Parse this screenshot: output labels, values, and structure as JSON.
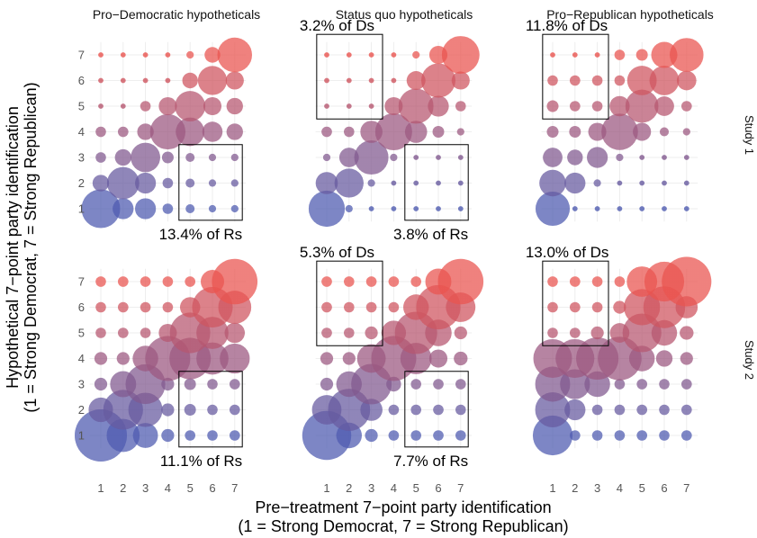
{
  "chart_data": {
    "type": "scatter",
    "subtype": "bubble-grid small multiples",
    "xlabel_line1": "Pre−treatment 7−point party identification",
    "xlabel_line2": "(1 = Strong Democrat, 7 = Strong Republican)",
    "ylabel_line1": "Hypothetical 7−point party identification",
    "ylabel_line2": "(1 = Strong Democrat, 7 = Strong Republican)",
    "columns": [
      "Pro−Democratic hypotheticals",
      "Status quo hypotheticals",
      "Pro−Republican hypotheticals"
    ],
    "rows": [
      "Study 1",
      "Study 2"
    ],
    "x_ticks": [
      "1",
      "2",
      "3",
      "4",
      "5",
      "6",
      "7"
    ],
    "y_ticks": [
      "1",
      "2",
      "3",
      "4",
      "5",
      "6",
      "7"
    ],
    "xlim": [
      0.5,
      7.5
    ],
    "ylim": [
      0.5,
      7.5
    ],
    "color_scale": {
      "low": "#3b4aa8",
      "high": "#e8433d",
      "by": "hypothetical party id"
    },
    "grid": true,
    "size_note": "bubble size is relative share of respondents (0-10 scale, estimated)",
    "panels": [
      {
        "row": "Study 1",
        "col": "Pro−Democratic hypotheticals",
        "annotations": [
          {
            "text": "13.4% of Rs",
            "box": "R-to-D"
          }
        ],
        "sizes": [
          [
            5.5,
            1.6,
            1.6,
            0.4,
            0.3,
            0.2,
            0.2
          ],
          [
            1.0,
            3.8,
            1.6,
            0.4,
            0.3,
            0.2,
            0.2
          ],
          [
            0.4,
            1.0,
            3.2,
            0.5,
            0.3,
            0.2,
            0.2
          ],
          [
            0.4,
            0.4,
            1.0,
            4.6,
            3.0,
            1.5,
            1.0
          ],
          [
            0.1,
            0.1,
            0.4,
            1.2,
            3.4,
            1.2,
            1.0
          ],
          [
            0.1,
            0.1,
            0.1,
            0.1,
            0.9,
            3.1,
            1.2
          ],
          [
            0.1,
            0.1,
            0.1,
            0.1,
            0.2,
            0.9,
            4.4
          ]
        ]
      },
      {
        "row": "Study 1",
        "col": "Status quo hypotheticals",
        "annotations": [
          {
            "text": "3.2% of Ds",
            "box": "D-to-R"
          },
          {
            "text": "3.8% of Rs",
            "box": "R-to-D"
          }
        ],
        "sizes": [
          [
            4.8,
            0.2,
            0.1,
            0.1,
            0.1,
            0.1,
            0.1
          ],
          [
            1.8,
            3.1,
            0.2,
            0.1,
            0.1,
            0.1,
            0.1
          ],
          [
            0.2,
            1.4,
            4.3,
            0.2,
            0.1,
            0.1,
            0.1
          ],
          [
            0.4,
            0.4,
            1.8,
            5.0,
            1.8,
            0.5,
            0.2
          ],
          [
            0.1,
            0.1,
            0.1,
            1.2,
            4.5,
            1.6,
            0.4
          ],
          [
            0.1,
            0.1,
            0.1,
            0.1,
            1.3,
            4.3,
            1.2
          ],
          [
            0.1,
            0.1,
            0.1,
            0.1,
            0.2,
            1.2,
            5.2
          ]
        ]
      },
      {
        "row": "Study 1",
        "col": "Pro−Republican hypotheticals",
        "annotations": [
          {
            "text": "11.8% of Ds",
            "box": "D-to-R"
          }
        ],
        "sizes": [
          [
            4.3,
            0.1,
            0.1,
            0.1,
            0.1,
            0.1,
            0.1
          ],
          [
            2.6,
            1.6,
            0.2,
            0.1,
            0.1,
            0.1,
            0.1
          ],
          [
            1.4,
            0.9,
            1.6,
            0.2,
            0.1,
            0.1,
            0.1
          ],
          [
            0.5,
            0.5,
            1.2,
            4.9,
            1.2,
            0.3,
            0.2
          ],
          [
            0.5,
            0.4,
            0.4,
            1.5,
            4.0,
            1.4,
            0.4
          ],
          [
            0.4,
            0.4,
            0.4,
            0.4,
            3.2,
            3.2,
            1.4
          ],
          [
            0.1,
            0.1,
            0.1,
            0.4,
            0.5,
            2.5,
            4.2
          ]
        ]
      },
      {
        "row": "Study 2",
        "col": "Pro−Democratic hypotheticals",
        "annotations": [
          {
            "text": "11.1% of Rs",
            "box": "R-to-D"
          }
        ],
        "sizes": [
          [
            10.0,
            4.0,
            2.3,
            0.6,
            0.4,
            0.4,
            0.4
          ],
          [
            2.2,
            5.8,
            4.3,
            0.6,
            0.5,
            0.4,
            0.4
          ],
          [
            0.6,
            2.5,
            5.8,
            0.6,
            0.5,
            0.4,
            0.4
          ],
          [
            0.6,
            0.6,
            2.4,
            7.4,
            6.3,
            3.8,
            3.3
          ],
          [
            0.4,
            0.4,
            0.4,
            1.2,
            6.0,
            3.8,
            1.5
          ],
          [
            0.4,
            0.4,
            0.4,
            0.4,
            1.5,
            6.0,
            4.0
          ],
          [
            0.4,
            0.4,
            0.4,
            0.4,
            0.4,
            2.0,
            7.6
          ]
        ]
      },
      {
        "row": "Study 2",
        "col": "Status quo hypotheticals",
        "annotations": [
          {
            "text": "5.3% of Ds",
            "box": "D-to-R"
          },
          {
            "text": "7.7% of Rs",
            "box": "R-to-D"
          }
        ],
        "sizes": [
          [
            8.8,
            2.4,
            0.6,
            0.4,
            0.4,
            0.4,
            0.4
          ],
          [
            3.2,
            6.5,
            1.8,
            0.4,
            0.4,
            0.4,
            0.4
          ],
          [
            0.6,
            2.4,
            6.0,
            0.8,
            0.4,
            0.4,
            0.4
          ],
          [
            0.6,
            0.6,
            3.0,
            7.4,
            3.6,
            1.2,
            0.7
          ],
          [
            0.4,
            0.4,
            0.6,
            2.2,
            6.6,
            2.6,
            0.6
          ],
          [
            0.4,
            0.4,
            0.4,
            0.4,
            2.4,
            7.2,
            3.2
          ],
          [
            0.4,
            0.4,
            0.4,
            0.4,
            0.4,
            2.5,
            7.6
          ]
        ]
      },
      {
        "row": "Study 2",
        "col": "Pro−Republican hypotheticals",
        "annotations": [
          {
            "text": "13.0% of Ds",
            "box": "D-to-R"
          }
        ],
        "sizes": [
          [
            5.8,
            0.4,
            0.4,
            0.4,
            0.4,
            0.4,
            0.4
          ],
          [
            4.5,
            1.6,
            0.4,
            0.4,
            0.4,
            0.4,
            0.4
          ],
          [
            4.5,
            3.3,
            2.4,
            0.4,
            0.4,
            0.4,
            0.4
          ],
          [
            5.5,
            5.5,
            6.6,
            7.0,
            2.4,
            1.0,
            0.6
          ],
          [
            0.4,
            0.4,
            0.6,
            1.4,
            5.5,
            2.4,
            0.7
          ],
          [
            0.4,
            0.4,
            0.4,
            0.6,
            4.8,
            6.4,
            1.8
          ],
          [
            0.4,
            0.4,
            0.4,
            0.4,
            3.4,
            5.8,
            9.0
          ]
        ]
      }
    ]
  }
}
